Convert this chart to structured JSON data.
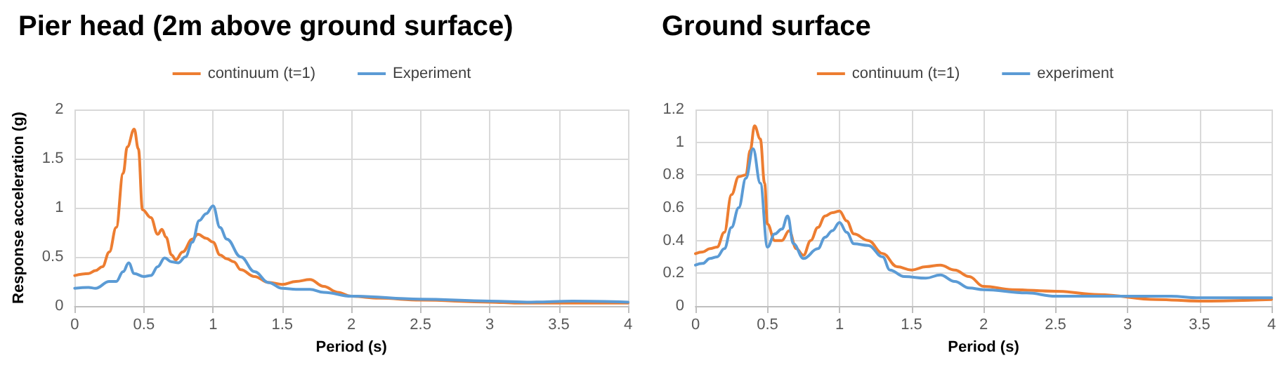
{
  "chart_data": [
    {
      "type": "line",
      "title": "Pier head (2m above ground surface)",
      "xlabel": "Period (s)",
      "ylabel": "Response acceleration (g)",
      "xlim": [
        0,
        4
      ],
      "xticks": [
        0,
        0.5,
        1,
        1.5,
        2,
        2.5,
        3,
        3.5,
        4
      ],
      "ylim": [
        0,
        2
      ],
      "yticks": [
        0,
        0.5,
        1,
        1.5,
        2
      ],
      "grid": true,
      "legend": "top",
      "marker": "none",
      "line_style": "solid",
      "series": [
        {
          "name": "continuum (t=1)",
          "color": "#ed7d31",
          "x": [
            0,
            0.1,
            0.15,
            0.2,
            0.25,
            0.3,
            0.35,
            0.38,
            0.43,
            0.46,
            0.49,
            0.55,
            0.6,
            0.63,
            0.66,
            0.7,
            0.73,
            0.78,
            0.85,
            0.89,
            0.95,
            1.0,
            1.05,
            1.1,
            1.15,
            1.2,
            1.3,
            1.4,
            1.5,
            1.6,
            1.7,
            1.8,
            1.9,
            2.0,
            2.2,
            2.5,
            3.0,
            3.2,
            3.5,
            4.0
          ],
          "values": [
            0.31,
            0.33,
            0.36,
            0.4,
            0.55,
            0.8,
            1.35,
            1.62,
            1.8,
            1.6,
            0.98,
            0.9,
            0.73,
            0.78,
            0.7,
            0.52,
            0.47,
            0.55,
            0.68,
            0.73,
            0.69,
            0.65,
            0.52,
            0.48,
            0.45,
            0.37,
            0.3,
            0.24,
            0.22,
            0.25,
            0.27,
            0.2,
            0.14,
            0.1,
            0.08,
            0.06,
            0.04,
            0.03,
            0.03,
            0.03
          ]
        },
        {
          "name": "Experiment",
          "color": "#5b9bd5",
          "x": [
            0,
            0.1,
            0.15,
            0.25,
            0.3,
            0.35,
            0.39,
            0.43,
            0.5,
            0.55,
            0.6,
            0.65,
            0.7,
            0.75,
            0.8,
            0.85,
            0.9,
            0.95,
            1.0,
            1.05,
            1.1,
            1.2,
            1.3,
            1.4,
            1.5,
            1.6,
            1.7,
            1.8,
            2.0,
            2.5,
            3.0,
            3.3,
            3.6,
            4.0
          ],
          "values": [
            0.18,
            0.19,
            0.18,
            0.25,
            0.25,
            0.35,
            0.44,
            0.33,
            0.3,
            0.31,
            0.4,
            0.49,
            0.45,
            0.44,
            0.5,
            0.65,
            0.87,
            0.94,
            1.02,
            0.8,
            0.68,
            0.5,
            0.35,
            0.24,
            0.18,
            0.17,
            0.17,
            0.14,
            0.1,
            0.07,
            0.05,
            0.04,
            0.05,
            0.04
          ]
        }
      ]
    },
    {
      "type": "line",
      "title": "Ground surface",
      "xlabel": "Period (s)",
      "xlim": [
        0,
        4
      ],
      "xticks": [
        0,
        0.5,
        1,
        1.5,
        2,
        2.5,
        3,
        3.5,
        4
      ],
      "ylim": [
        0,
        1.2
      ],
      "yticks": [
        0,
        0.2,
        0.4,
        0.6,
        0.8,
        1,
        1.2
      ],
      "grid": true,
      "legend": "top",
      "marker": "none",
      "line_style": "solid",
      "series": [
        {
          "name": "continuum (t=1)",
          "color": "#ed7d31",
          "x": [
            0,
            0.05,
            0.1,
            0.15,
            0.2,
            0.25,
            0.3,
            0.35,
            0.38,
            0.41,
            0.45,
            0.48,
            0.5,
            0.55,
            0.6,
            0.65,
            0.7,
            0.75,
            0.8,
            0.85,
            0.9,
            0.95,
            1.0,
            1.05,
            1.1,
            1.2,
            1.3,
            1.4,
            1.5,
            1.6,
            1.7,
            1.8,
            1.9,
            2.0,
            2.2,
            2.5,
            2.8,
            3.2,
            3.5,
            4.0
          ],
          "values": [
            0.32,
            0.33,
            0.35,
            0.36,
            0.45,
            0.68,
            0.79,
            0.8,
            0.95,
            1.1,
            1.02,
            0.75,
            0.5,
            0.4,
            0.4,
            0.46,
            0.35,
            0.31,
            0.4,
            0.48,
            0.55,
            0.57,
            0.58,
            0.52,
            0.44,
            0.4,
            0.32,
            0.24,
            0.22,
            0.24,
            0.25,
            0.22,
            0.18,
            0.12,
            0.1,
            0.09,
            0.07,
            0.04,
            0.03,
            0.04
          ]
        },
        {
          "name": "experiment",
          "color": "#5b9bd5",
          "x": [
            0,
            0.05,
            0.1,
            0.15,
            0.2,
            0.25,
            0.3,
            0.35,
            0.4,
            0.45,
            0.5,
            0.55,
            0.6,
            0.64,
            0.68,
            0.75,
            0.85,
            0.9,
            0.95,
            1.0,
            1.05,
            1.1,
            1.2,
            1.3,
            1.35,
            1.45,
            1.6,
            1.7,
            1.8,
            1.9,
            2.0,
            2.3,
            2.5,
            3.0,
            3.3,
            3.5,
            4.0
          ],
          "values": [
            0.25,
            0.26,
            0.29,
            0.3,
            0.35,
            0.48,
            0.6,
            0.78,
            0.96,
            0.75,
            0.36,
            0.44,
            0.47,
            0.55,
            0.38,
            0.29,
            0.35,
            0.42,
            0.46,
            0.51,
            0.45,
            0.38,
            0.37,
            0.3,
            0.22,
            0.18,
            0.17,
            0.19,
            0.15,
            0.11,
            0.1,
            0.08,
            0.06,
            0.06,
            0.06,
            0.05,
            0.05
          ]
        }
      ]
    }
  ]
}
